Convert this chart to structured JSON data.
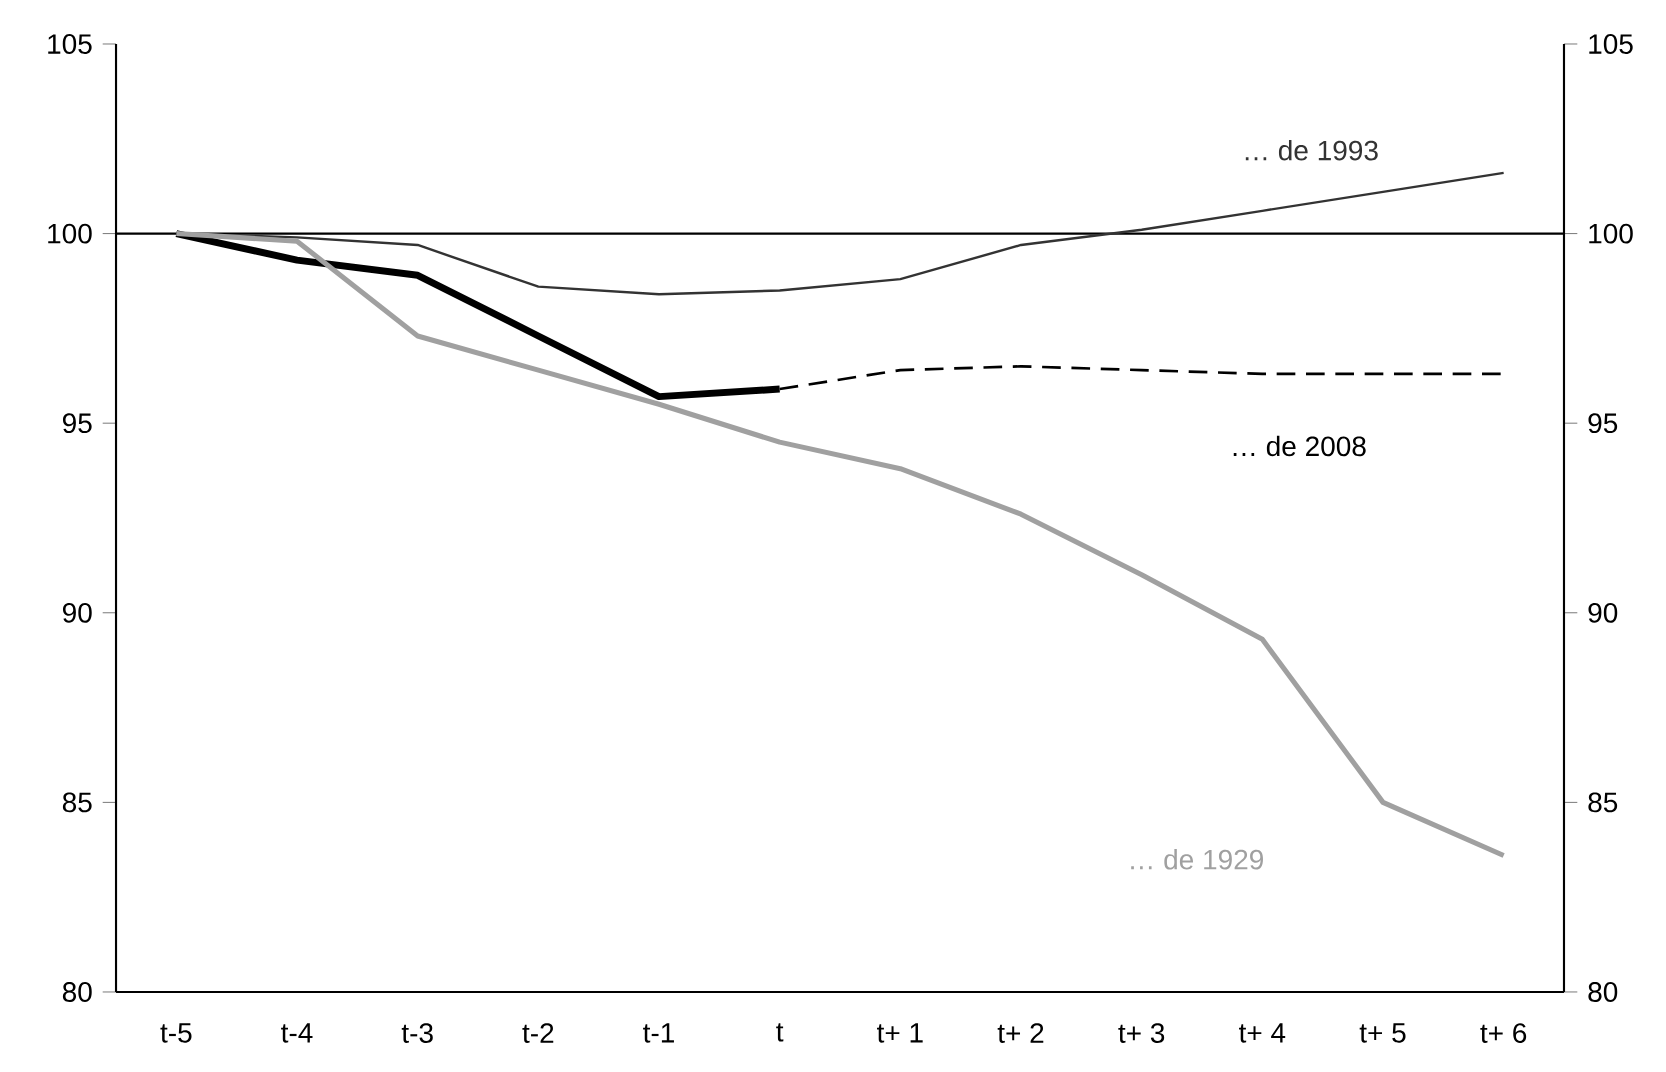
{
  "chart_data": {
    "type": "line",
    "categories": [
      "t-5",
      "t-4",
      "t-3",
      "t-2",
      "t-1",
      "t",
      "t+ 1",
      "t+ 2",
      "t+ 3",
      "t+ 4",
      "t+ 5",
      "t+ 6"
    ],
    "series": [
      {
        "name": "… de 1993",
        "color": "#333333",
        "line_style": "solid",
        "values": [
          100,
          99.9,
          99.7,
          98.6,
          98.4,
          98.5,
          98.8,
          99.7,
          100.1,
          100.6,
          101.1,
          101.6
        ]
      },
      {
        "name": "… de 2008",
        "color": "#000000",
        "line_style": "solid",
        "values": [
          100,
          99.3,
          98.9,
          97.3,
          95.7,
          95.9,
          null,
          null,
          null,
          null,
          null,
          null
        ]
      },
      {
        "color": "#000000",
        "line_style": "dashed",
        "values": [
          null,
          null,
          null,
          null,
          null,
          95.9,
          96.4,
          96.5,
          96.4,
          96.3,
          96.3,
          96.3
        ]
      },
      {
        "name": "… de 1929",
        "color": "#a0a0a0",
        "line_style": "solid",
        "values": [
          100,
          99.8,
          97.3,
          96.4,
          95.5,
          94.5,
          93.8,
          92.6,
          91.0,
          89.3,
          85.0,
          83.6
        ]
      }
    ],
    "ylim": [
      80,
      105
    ],
    "yticks": [
      80,
      85,
      90,
      95,
      100,
      105
    ],
    "y2lim": [
      80,
      105
    ],
    "y2ticks": [
      80,
      85,
      90,
      95,
      100,
      105
    ],
    "ref_lines": [
      {
        "axis": "y",
        "value": 100,
        "color": "#000000"
      }
    ],
    "grid": false,
    "marker": "none"
  }
}
